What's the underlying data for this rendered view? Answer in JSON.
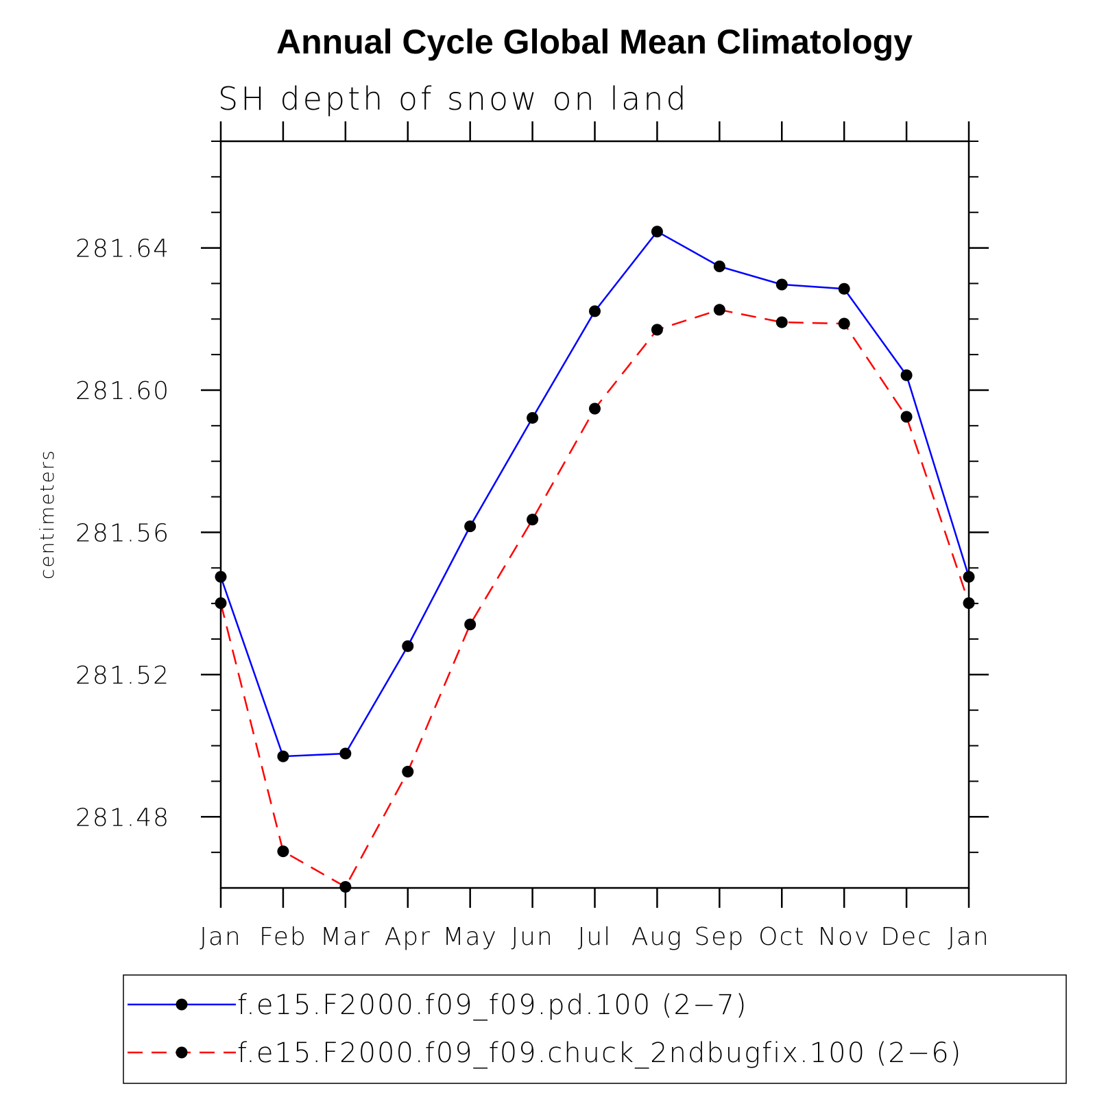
{
  "chart_data": {
    "type": "line",
    "title": "Annual Cycle Global Mean Climatology",
    "subtitle": "SH depth of snow on land",
    "ylabel": "centimeters",
    "xlabel": "",
    "categories": [
      "Jan",
      "Feb",
      "Mar",
      "Apr",
      "May",
      "Jun",
      "Jul",
      "Aug",
      "Sep",
      "Oct",
      "Nov",
      "Dec",
      "Jan"
    ],
    "ylim": [
      281.46,
      281.67
    ],
    "yticks": [
      281.48,
      281.52,
      281.56,
      281.6,
      281.64
    ],
    "ytick_labels": [
      "281.48",
      "281.52",
      "281.56",
      "281.60",
      "281.64"
    ],
    "grid": false,
    "legend_position": "bottom",
    "series": [
      {
        "name": "f.e15.F2000.f09_f09.pd.100 (2−7)",
        "color": "#0000ff",
        "dash": "solid",
        "marker": "filled-circle",
        "values": [
          281.5475,
          281.497,
          281.4978,
          281.528,
          281.5617,
          281.5922,
          281.6222,
          281.6446,
          281.6348,
          281.6297,
          281.6285,
          281.6042,
          281.5475
        ]
      },
      {
        "name": "f.e15.F2000.f09_f09.chuck_2ndbugfix.100 (2−6)",
        "color": "#ff0000",
        "dash": "dashed",
        "marker": "filled-circle",
        "values": [
          281.5401,
          281.4703,
          281.4603,
          281.4927,
          281.5341,
          281.5636,
          281.5948,
          281.617,
          281.6226,
          281.6191,
          281.6187,
          281.5925,
          281.5401
        ]
      }
    ]
  }
}
